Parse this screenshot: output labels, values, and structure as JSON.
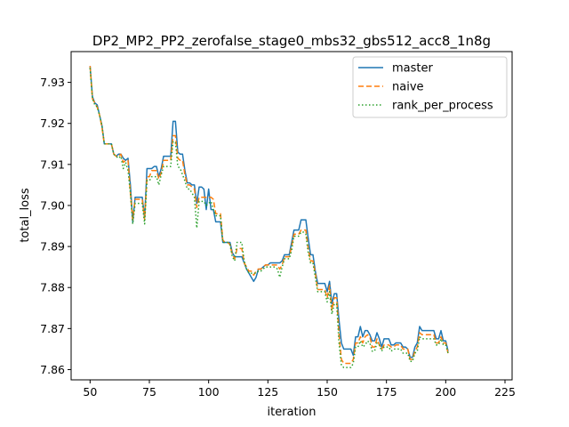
{
  "chart_data": {
    "type": "line",
    "title": "DP2_MP2_PP2_zerofalse_stage0_mbs32_gbs512_acc8_1n8g",
    "xlabel": "iteration",
    "ylabel": "total_loss",
    "xlim": [
      42,
      228
    ],
    "ylim": [
      7.8575,
      7.9375
    ],
    "xticks": [
      50,
      75,
      100,
      125,
      150,
      175,
      200,
      225
    ],
    "xtick_labels": [
      "50",
      "75",
      "100",
      "125",
      "150",
      "175",
      "200",
      "225"
    ],
    "yticks": [
      7.86,
      7.87,
      7.88,
      7.89,
      7.9,
      7.91,
      7.92,
      7.93
    ],
    "ytick_labels": [
      "7.86",
      "7.87",
      "7.88",
      "7.89",
      "7.90",
      "7.91",
      "7.92",
      "7.93"
    ],
    "grid": false,
    "legend_position": "upper-right",
    "x_start": 50,
    "series": [
      {
        "name": "master",
        "color": "#1f77b4",
        "dash": "solid",
        "values": [
          7.934,
          7.9265,
          7.925,
          7.9245,
          7.922,
          7.9195,
          7.915,
          7.915,
          7.915,
          7.915,
          7.9125,
          7.912,
          7.9125,
          7.9125,
          7.9115,
          7.911,
          7.9115,
          7.905,
          7.896,
          7.902,
          7.902,
          7.902,
          7.902,
          7.897,
          7.909,
          7.909,
          7.909,
          7.9095,
          7.9095,
          7.907,
          7.909,
          7.912,
          7.912,
          7.912,
          7.912,
          7.9205,
          7.9205,
          7.913,
          7.9125,
          7.9125,
          7.9085,
          7.9055,
          7.9055,
          7.905,
          7.905,
          7.9005,
          7.9045,
          7.9045,
          7.904,
          7.899,
          7.904,
          7.899,
          7.899,
          7.896,
          7.896,
          7.896,
          7.891,
          7.891,
          7.891,
          7.891,
          7.8885,
          7.8875,
          7.8875,
          7.8875,
          7.8875,
          7.886,
          7.8845,
          7.8835,
          7.8825,
          7.8815,
          7.8825,
          7.8845,
          7.8845,
          7.885,
          7.8855,
          7.8855,
          7.886,
          7.886,
          7.886,
          7.886,
          7.886,
          7.8865,
          7.888,
          7.888,
          7.888,
          7.891,
          7.894,
          7.894,
          7.894,
          7.8965,
          7.8965,
          7.8965,
          7.892,
          7.888,
          7.888,
          7.884,
          7.881,
          7.881,
          7.881,
          7.881,
          7.879,
          7.8815,
          7.876,
          7.8785,
          7.8785,
          7.872,
          7.8665,
          7.865,
          7.865,
          7.865,
          7.865,
          7.8635,
          7.868,
          7.868,
          7.8705,
          7.868,
          7.8695,
          7.8695,
          7.8685,
          7.867,
          7.867,
          7.869,
          7.8675,
          7.8655,
          7.8675,
          7.8675,
          7.8675,
          7.866,
          7.866,
          7.8665,
          7.8665,
          7.8665,
          7.8655,
          7.8655,
          7.865,
          7.863,
          7.863,
          7.8655,
          7.8665,
          7.8705,
          7.8695,
          7.8695,
          7.8695,
          7.8695,
          7.8695,
          7.8695,
          7.8675,
          7.8675,
          7.8695,
          7.867,
          7.867,
          7.8645
        ]
      },
      {
        "name": "naive",
        "color": "#ff7f0e",
        "dash": "dashed",
        "values": [
          7.934,
          7.926,
          7.925,
          7.924,
          7.922,
          7.919,
          7.915,
          7.915,
          7.915,
          7.915,
          7.9125,
          7.912,
          7.912,
          7.9125,
          7.9105,
          7.911,
          7.911,
          7.903,
          7.8965,
          7.9015,
          7.9015,
          7.9015,
          7.9015,
          7.8965,
          7.907,
          7.907,
          7.9085,
          7.9085,
          7.9085,
          7.9065,
          7.908,
          7.911,
          7.911,
          7.911,
          7.911,
          7.917,
          7.917,
          7.9115,
          7.911,
          7.911,
          7.9075,
          7.905,
          7.905,
          7.9045,
          7.904,
          7.8995,
          7.902,
          7.902,
          7.902,
          7.902,
          7.902,
          7.902,
          7.9015,
          7.898,
          7.898,
          7.898,
          7.8915,
          7.891,
          7.891,
          7.8905,
          7.888,
          7.887,
          7.8895,
          7.8895,
          7.8895,
          7.886,
          7.885,
          7.884,
          7.884,
          7.883,
          7.884,
          7.8845,
          7.8845,
          7.885,
          7.8855,
          7.8855,
          7.8855,
          7.8855,
          7.8855,
          7.8855,
          7.8845,
          7.8855,
          7.8875,
          7.8875,
          7.8875,
          7.89,
          7.893,
          7.893,
          7.893,
          7.894,
          7.894,
          7.894,
          7.8895,
          7.8865,
          7.8865,
          7.8835,
          7.8795,
          7.8795,
          7.8795,
          7.8795,
          7.8775,
          7.8805,
          7.8745,
          7.8775,
          7.8775,
          7.8685,
          7.8625,
          7.8615,
          7.8615,
          7.8615,
          7.8615,
          7.8625,
          7.8665,
          7.8665,
          7.868,
          7.8665,
          7.868,
          7.8685,
          7.868,
          7.8655,
          7.8655,
          7.8675,
          7.866,
          7.865,
          7.866,
          7.866,
          7.866,
          7.8655,
          7.8655,
          7.866,
          7.866,
          7.866,
          7.865,
          7.865,
          7.865,
          7.8625,
          7.8625,
          7.8645,
          7.8655,
          7.869,
          7.8685,
          7.8685,
          7.8685,
          7.8685,
          7.8685,
          7.8685,
          7.8665,
          7.8665,
          7.868,
          7.8665,
          7.8665,
          7.864
        ]
      },
      {
        "name": "rank_per_process",
        "color": "#2ca02c",
        "dash": "dotted",
        "values": [
          7.9335,
          7.926,
          7.9245,
          7.924,
          7.922,
          7.9195,
          7.915,
          7.915,
          7.915,
          7.915,
          7.9125,
          7.912,
          7.9115,
          7.912,
          7.909,
          7.9105,
          7.9085,
          7.903,
          7.8955,
          7.9005,
          7.9005,
          7.9005,
          7.9005,
          7.8955,
          7.906,
          7.906,
          7.907,
          7.907,
          7.907,
          7.905,
          7.9075,
          7.9095,
          7.9095,
          7.9095,
          7.9095,
          7.9155,
          7.9155,
          7.9095,
          7.909,
          7.9075,
          7.906,
          7.904,
          7.904,
          7.903,
          7.902,
          7.8945,
          7.901,
          7.901,
          7.901,
          7.9,
          7.9005,
          7.901,
          7.899,
          7.8975,
          7.8975,
          7.8975,
          7.891,
          7.891,
          7.891,
          7.8905,
          7.8875,
          7.8865,
          7.891,
          7.891,
          7.891,
          7.8865,
          7.8845,
          7.8835,
          7.8835,
          7.8835,
          7.8835,
          7.884,
          7.884,
          7.8845,
          7.885,
          7.885,
          7.885,
          7.885,
          7.885,
          7.8845,
          7.8825,
          7.885,
          7.887,
          7.887,
          7.887,
          7.889,
          7.8925,
          7.8925,
          7.8925,
          7.8935,
          7.8935,
          7.893,
          7.8885,
          7.886,
          7.886,
          7.8825,
          7.879,
          7.879,
          7.879,
          7.879,
          7.8765,
          7.879,
          7.8735,
          7.876,
          7.876,
          7.8665,
          7.861,
          7.8605,
          7.8605,
          7.8605,
          7.8605,
          7.8615,
          7.8655,
          7.8655,
          7.867,
          7.8655,
          7.866,
          7.867,
          7.8665,
          7.8645,
          7.8645,
          7.8665,
          7.866,
          7.8645,
          7.8655,
          7.8655,
          7.8655,
          7.8645,
          7.865,
          7.865,
          7.865,
          7.865,
          7.864,
          7.864,
          7.864,
          7.862,
          7.862,
          7.864,
          7.8645,
          7.868,
          7.8675,
          7.8675,
          7.8675,
          7.8675,
          7.8675,
          7.8675,
          7.866,
          7.866,
          7.8675,
          7.866,
          7.866,
          7.864
        ]
      }
    ]
  }
}
